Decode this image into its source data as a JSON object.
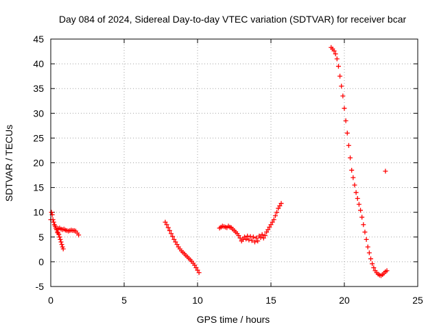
{
  "chart_data": {
    "type": "scatter",
    "title": "Day 084 of 2024, Sidereal Day-to-day VTEC variation (SDTVAR) for receiver bcar",
    "xlabel": "GPS time / hours",
    "ylabel": "SDTVAR / TECUs",
    "xlim": [
      0,
      25
    ],
    "ylim": [
      -5,
      45
    ],
    "xticks": [
      0,
      5,
      10,
      15,
      20,
      25
    ],
    "yticks": [
      -5,
      0,
      5,
      10,
      15,
      20,
      25,
      30,
      35,
      40,
      45
    ],
    "xtick_labels": [
      "0",
      "5",
      "10",
      "15",
      "20",
      "25"
    ],
    "ytick_labels": [
      "-5",
      "0",
      "5",
      "10",
      "15",
      "20",
      "25",
      "30",
      "35",
      "40",
      "45"
    ],
    "grid": true,
    "marker": "plus",
    "color": "#ff0000",
    "series": [
      {
        "x": [
          0.0,
          0.05,
          0.1,
          0.15,
          0.2,
          0.25,
          0.3,
          0.35,
          0.4,
          0.45,
          0.5,
          0.55,
          0.6,
          0.65,
          0.7,
          0.75,
          0.8,
          0.85
        ],
        "y": [
          8.5,
          10.0,
          9.5,
          8.5,
          8.0,
          7.5,
          7.2,
          6.8,
          6.5,
          6.0,
          5.8,
          5.5,
          5.0,
          4.5,
          4.0,
          3.5,
          3.0,
          2.6
        ]
      },
      {
        "x": [
          0.4,
          0.5,
          0.6,
          0.7,
          0.8,
          0.9,
          1.0,
          1.1,
          1.2,
          1.3,
          1.4,
          1.5,
          1.6,
          1.7,
          1.8,
          1.9
        ],
        "y": [
          6.5,
          6.7,
          6.8,
          6.6,
          6.5,
          6.6,
          6.4,
          6.3,
          6.2,
          6.3,
          6.4,
          6.3,
          6.3,
          6.2,
          5.8,
          5.4
        ]
      },
      {
        "x": [
          7.8,
          7.9,
          8.0,
          8.1,
          8.2,
          8.3,
          8.4,
          8.5,
          8.6,
          8.7,
          8.8,
          8.9,
          9.0,
          9.1,
          9.2,
          9.3,
          9.4,
          9.5,
          9.6,
          9.7,
          9.8,
          9.9,
          10.0,
          10.1
        ],
        "y": [
          8.0,
          7.5,
          6.9,
          6.3,
          5.7,
          5.1,
          4.5,
          4.0,
          3.5,
          3.0,
          2.6,
          2.2,
          1.9,
          1.6,
          1.3,
          1.0,
          0.7,
          0.4,
          0.1,
          -0.3,
          -0.7,
          -1.2,
          -1.7,
          -2.2
        ]
      },
      {
        "x": [
          11.5,
          11.6,
          11.7,
          11.8,
          11.9,
          12.0,
          12.1,
          12.2,
          12.3,
          12.4,
          12.5,
          12.6,
          12.7,
          12.8,
          12.9,
          13.0,
          13.1,
          13.2,
          13.3,
          13.4,
          13.5,
          13.6,
          13.7,
          13.8,
          13.9,
          14.0,
          14.1,
          14.2,
          14.3,
          14.4,
          14.5,
          14.6,
          14.7,
          14.8,
          14.9,
          15.0,
          15.1,
          15.2,
          15.3,
          15.4,
          15.5,
          15.6,
          15.7
        ],
        "y": [
          6.8,
          7.0,
          7.2,
          7.1,
          7.0,
          6.9,
          7.2,
          7.0,
          6.9,
          6.6,
          6.3,
          6.0,
          5.7,
          5.3,
          4.8,
          4.2,
          4.5,
          5.0,
          4.6,
          5.2,
          4.4,
          5.1,
          4.3,
          5.0,
          4.0,
          4.8,
          4.2,
          5.2,
          4.9,
          5.5,
          4.8,
          5.3,
          6.0,
          6.5,
          7.0,
          7.5,
          8.0,
          8.5,
          9.3,
          10.0,
          10.8,
          11.3,
          11.8
        ]
      },
      {
        "x": [
          19.1,
          19.2,
          19.3,
          19.4,
          19.5,
          19.6,
          19.7,
          19.8,
          19.9,
          20.0,
          20.1,
          20.2,
          20.3,
          20.4,
          20.5,
          20.6,
          20.7,
          20.8,
          20.9,
          21.0,
          21.1,
          21.2,
          21.3,
          21.4,
          21.5,
          21.6,
          21.7,
          21.8,
          21.9,
          22.0,
          22.1,
          22.2,
          22.3,
          22.4,
          22.5,
          22.6,
          22.7,
          22.8,
          22.9
        ],
        "y": [
          43.3,
          43.0,
          42.6,
          42.0,
          41.0,
          39.5,
          37.5,
          35.5,
          33.5,
          31.0,
          28.5,
          26.0,
          23.5,
          21.0,
          18.5,
          17.0,
          15.5,
          14.0,
          12.8,
          11.6,
          10.4,
          9.0,
          7.5,
          6.0,
          4.5,
          3.0,
          1.8,
          0.6,
          -0.4,
          -1.2,
          -1.8,
          -2.2,
          -2.5,
          -2.7,
          -2.8,
          -2.6,
          -2.3,
          -2.0,
          -1.8
        ]
      },
      {
        "x": [
          22.8
        ],
        "y": [
          18.3
        ]
      }
    ]
  }
}
